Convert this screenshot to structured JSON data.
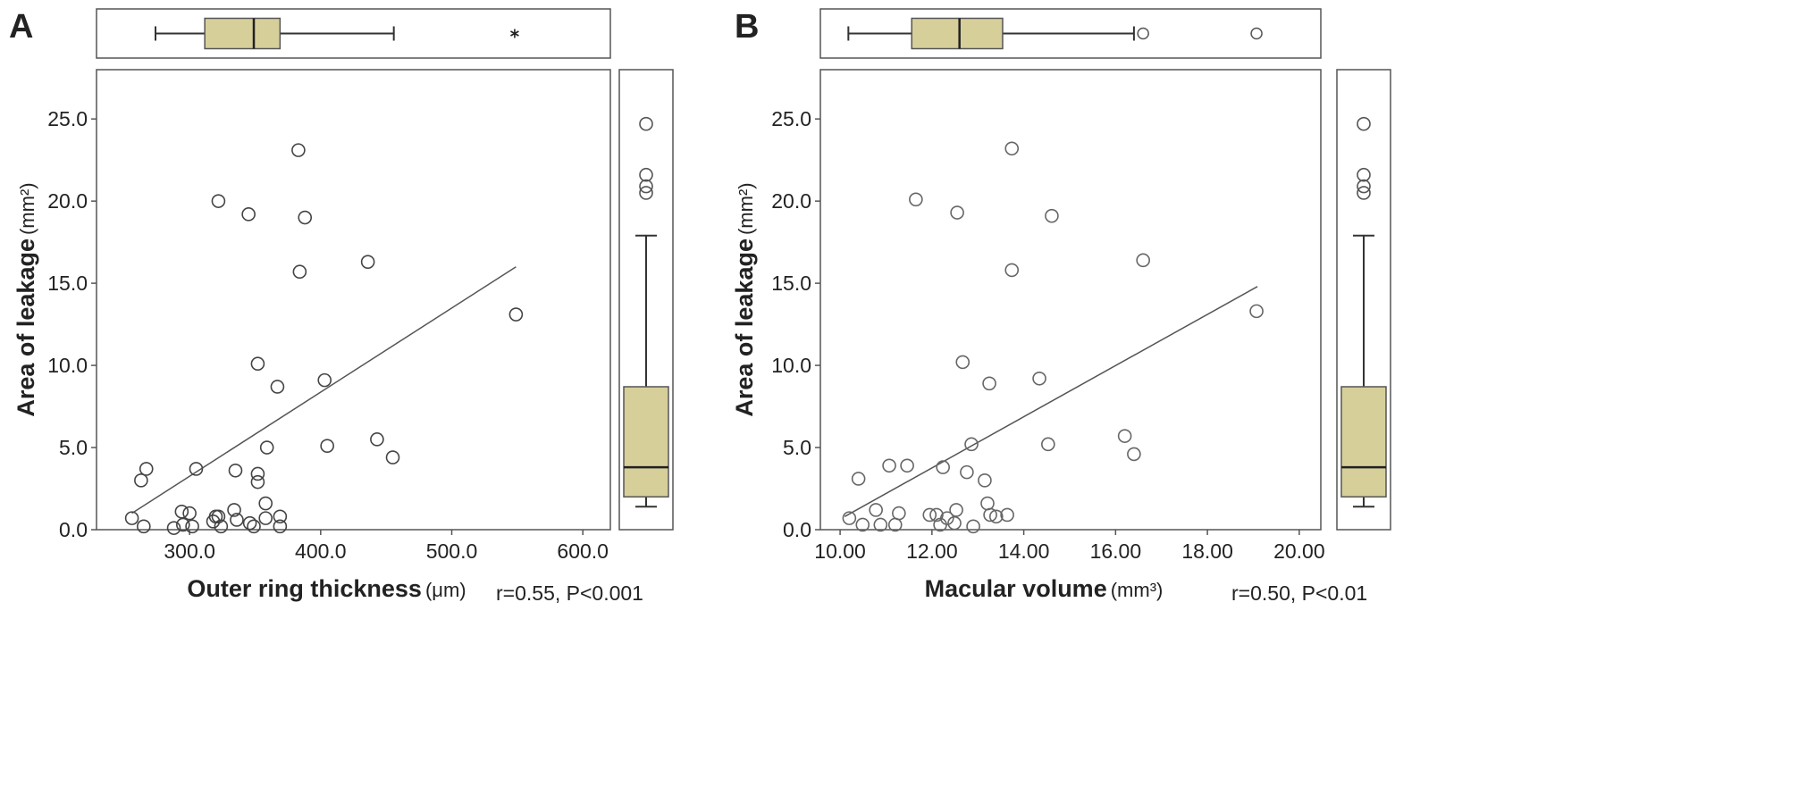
{
  "chart_data": [
    {
      "type": "scatter",
      "panel_label": "A",
      "x_label": "Outer ring thickness",
      "x_unit": "(μm)",
      "y_label": "Area of leakage",
      "y_unit": "(mm²)",
      "annotation": "r=0.55, P<0.001",
      "color": "#444444",
      "box_color": "#d6cf9a",
      "xlim": [
        229,
        621
      ],
      "ylim": [
        0,
        28
      ],
      "xticks": [
        {
          "value": 300,
          "label": "300.0"
        },
        {
          "value": 400,
          "label": "400.0"
        },
        {
          "value": 500,
          "label": "500.0"
        },
        {
          "value": 600,
          "label": "600.0"
        }
      ],
      "yticks": [
        {
          "value": 0,
          "label": "0.0"
        },
        {
          "value": 5,
          "label": "5.0"
        },
        {
          "value": 10,
          "label": "10.0"
        },
        {
          "value": 15,
          "label": "15.0"
        },
        {
          "value": 20,
          "label": "20.0"
        },
        {
          "value": 25,
          "label": "25.0"
        }
      ],
      "x": [
        256,
        263,
        267,
        265,
        305,
        322,
        345,
        335,
        352,
        352,
        352,
        359,
        367,
        383,
        384,
        388,
        403,
        405,
        436,
        443,
        455,
        549,
        294,
        300,
        295,
        302,
        318,
        320,
        322,
        324,
        334,
        336,
        346,
        349,
        358,
        358,
        369,
        369,
        288
      ],
      "values": [
        0.7,
        3.0,
        3.7,
        0.2,
        3.7,
        20.0,
        19.2,
        3.6,
        3.4,
        2.9,
        10.1,
        5.0,
        8.7,
        23.1,
        15.7,
        19.0,
        9.1,
        5.1,
        16.3,
        5.5,
        4.4,
        13.1,
        1.1,
        1.0,
        0.3,
        0.2,
        0.5,
        0.8,
        0.8,
        0.2,
        1.2,
        0.6,
        0.4,
        0.2,
        0.7,
        1.6,
        0.8,
        0.2,
        0.1
      ],
      "trend_line": {
        "x": [
          256,
          549
        ],
        "values": [
          1.0,
          16.0
        ]
      },
      "x_box": {
        "whisker_low": 274,
        "q1": 311.6,
        "median": 349,
        "q3": 369,
        "whisker_high": 455.8,
        "outliers": [],
        "extremes": [
          548
        ]
      },
      "y_box": {
        "whisker_low": 1.4,
        "q1": 2.0,
        "median": 3.8,
        "q3": 8.7,
        "whisker_high": 17.9,
        "outliers": [
          24.7,
          21.6,
          20.9,
          20.5
        ],
        "extremes": []
      }
    },
    {
      "type": "scatter",
      "panel_label": "B",
      "x_label": "Macular  volume",
      "x_unit": "(mm³)",
      "y_label": "Area of leakage",
      "y_unit": "(mm²)",
      "annotation": "r=0.50, P<0.01",
      "color": "#666666",
      "box_color": "#d6cf9a",
      "xlim": [
        9.57,
        20.47
      ],
      "ylim": [
        0,
        28
      ],
      "xticks": [
        {
          "value": 10,
          "label": "10.00"
        },
        {
          "value": 12,
          "label": "12.00"
        },
        {
          "value": 14,
          "label": "14.00"
        },
        {
          "value": 16,
          "label": "16.00"
        },
        {
          "value": 18,
          "label": "18.00"
        },
        {
          "value": 20,
          "label": "20.00"
        }
      ],
      "yticks": [
        {
          "value": 0,
          "label": "0.0"
        },
        {
          "value": 5,
          "label": "5.0"
        },
        {
          "value": 10,
          "label": "10.0"
        },
        {
          "value": 15,
          "label": "15.0"
        },
        {
          "value": 20,
          "label": "20.0"
        },
        {
          "value": 25,
          "label": "25.0"
        }
      ],
      "x": [
        10.2,
        10.4,
        11.07,
        11.46,
        11.65,
        12.24,
        12.55,
        12.67,
        12.76,
        12.86,
        13.15,
        13.25,
        13.74,
        13.74,
        14.34,
        14.53,
        14.61,
        16.2,
        16.4,
        16.6,
        19.07,
        10.49,
        10.78,
        10.88,
        11.2,
        11.28,
        11.95,
        12.1,
        12.18,
        12.33,
        12.53,
        12.49,
        13.21,
        13.27,
        13.4,
        13.64,
        12.9
      ],
      "values": [
        0.7,
        3.1,
        3.9,
        3.9,
        20.1,
        3.8,
        19.3,
        10.2,
        3.5,
        5.2,
        3.0,
        8.9,
        23.2,
        15.8,
        9.2,
        5.2,
        19.1,
        5.7,
        4.6,
        16.4,
        13.3,
        0.3,
        1.2,
        0.3,
        0.3,
        1.0,
        0.9,
        0.9,
        0.3,
        0.7,
        1.2,
        0.4,
        1.6,
        0.9,
        0.8,
        0.9,
        0.2
      ],
      "trend_line": {
        "x": [
          10.1,
          19.09
        ],
        "values": [
          0.8,
          14.8
        ]
      },
      "x_box": {
        "whisker_low": 10.18,
        "q1": 11.56,
        "median": 12.6,
        "q3": 13.54,
        "whisker_high": 16.4,
        "outliers": [
          16.6,
          19.07
        ],
        "extremes": []
      },
      "y_box": {
        "whisker_low": 1.4,
        "q1": 2.0,
        "median": 3.8,
        "q3": 8.7,
        "whisker_high": 17.9,
        "outliers": [
          24.7,
          21.6,
          20.9,
          20.5
        ],
        "extremes": []
      }
    }
  ]
}
